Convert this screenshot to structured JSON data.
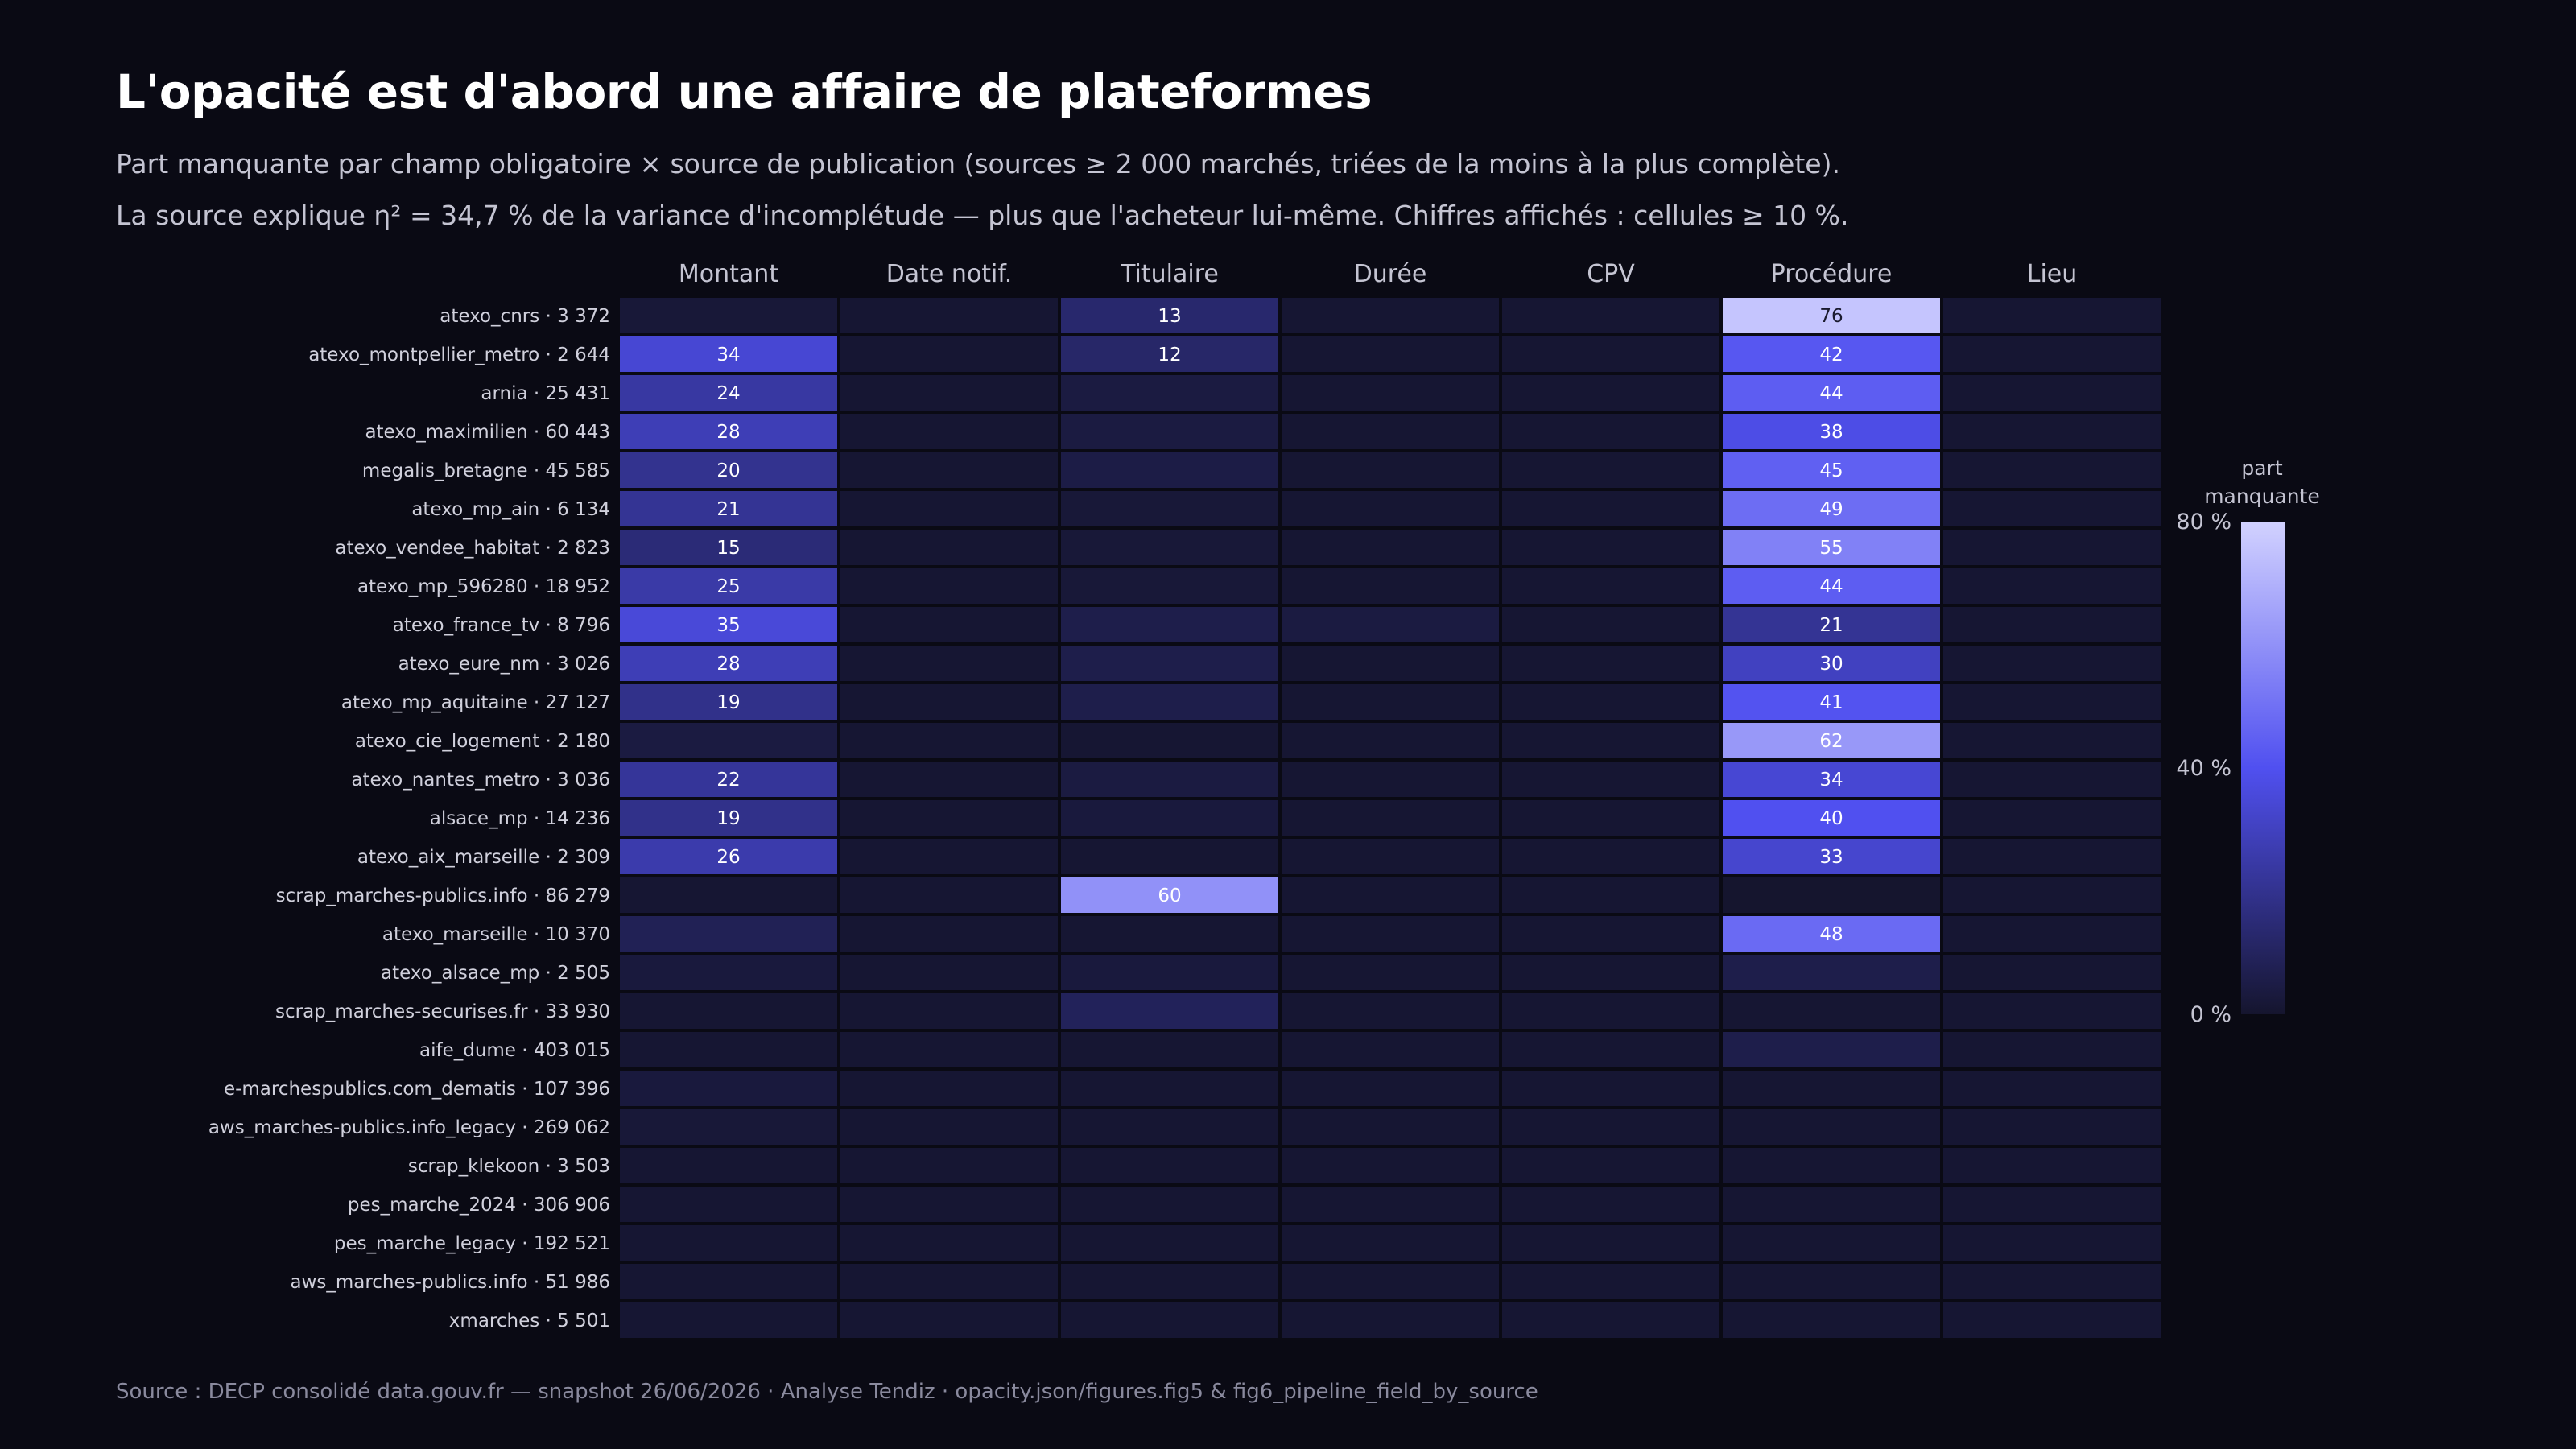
{
  "header": {
    "title": "L'opacité est d'abord une affaire de plateformes",
    "subtitle_1": "Part manquante par champ obligatoire × source de publication (sources ≥ 2 000 marchés, triées de la moins à la plus complète).",
    "subtitle_2": "La source explique η² = 34,7 % de la variance d'incomplétude — plus que l'acheteur lui-même. Chiffres affichés : cellules ≥ 10 %."
  },
  "footer": {
    "source": "Source : DECP consolidé data.gouv.fr — snapshot 26/06/2026 · Analyse Tendiz  ·  opacity.json/figures.fig5 & fig6_pipeline_field_by_source"
  },
  "chart_data": {
    "type": "heatmap",
    "columns": [
      "Montant",
      "Date notif.",
      "Titulaire",
      "Durée",
      "CPV",
      "Procédure",
      "Lieu"
    ],
    "rows": [
      {
        "source": "atexo_cnrs",
        "count": "3 372",
        "values": [
          2,
          1,
          13,
          1,
          1,
          76,
          1
        ]
      },
      {
        "source": "atexo_montpellier_metro",
        "count": "2 644",
        "values": [
          34,
          1,
          12,
          1,
          1,
          42,
          1
        ]
      },
      {
        "source": "arnia",
        "count": "25 431",
        "values": [
          24,
          1,
          4,
          1,
          1,
          44,
          1
        ]
      },
      {
        "source": "atexo_maximilien",
        "count": "60 443",
        "values": [
          28,
          1,
          4,
          1,
          1,
          38,
          1
        ]
      },
      {
        "source": "megalis_bretagne",
        "count": "45 585",
        "values": [
          20,
          1,
          5,
          1,
          1,
          45,
          1
        ]
      },
      {
        "source": "atexo_mp_ain",
        "count": "6 134",
        "values": [
          21,
          1,
          2,
          1,
          1,
          49,
          1
        ]
      },
      {
        "source": "atexo_vendee_habitat",
        "count": "2 823",
        "values": [
          15,
          1,
          2,
          1,
          1,
          55,
          1
        ]
      },
      {
        "source": "atexo_mp_596280",
        "count": "18 952",
        "values": [
          25,
          1,
          2,
          1,
          1,
          44,
          1
        ]
      },
      {
        "source": "atexo_france_tv",
        "count": "8 796",
        "values": [
          35,
          1,
          6,
          4,
          1,
          21,
          1
        ]
      },
      {
        "source": "atexo_eure_nm",
        "count": "3 026",
        "values": [
          28,
          1,
          6,
          1,
          1,
          30,
          1
        ]
      },
      {
        "source": "atexo_mp_aquitaine",
        "count": "27 127",
        "values": [
          19,
          1,
          6,
          1,
          1,
          41,
          1
        ]
      },
      {
        "source": "atexo_cie_logement",
        "count": "2 180",
        "values": [
          4,
          1,
          1,
          1,
          1,
          62,
          1
        ]
      },
      {
        "source": "atexo_nantes_metro",
        "count": "3 036",
        "values": [
          22,
          1,
          4,
          1,
          1,
          34,
          1
        ]
      },
      {
        "source": "alsace_mp",
        "count": "14 236",
        "values": [
          19,
          1,
          3,
          1,
          1,
          40,
          1
        ]
      },
      {
        "source": "atexo_aix_marseille",
        "count": "2 309",
        "values": [
          26,
          1,
          1,
          1,
          1,
          33,
          1
        ]
      },
      {
        "source": "scrap_marches-publics.info",
        "count": "86 279",
        "values": [
          1,
          1,
          60,
          1,
          1,
          0,
          1
        ]
      },
      {
        "source": "atexo_marseille",
        "count": "10 370",
        "values": [
          8,
          1,
          1,
          1,
          1,
          48,
          1
        ]
      },
      {
        "source": "atexo_alsace_mp",
        "count": "2 505",
        "values": [
          3,
          1,
          3,
          1,
          1,
          6,
          1
        ]
      },
      {
        "source": "scrap_marches-securises.fr",
        "count": "33 930",
        "values": [
          1,
          1,
          9,
          1,
          1,
          1,
          1
        ]
      },
      {
        "source": "aife_dume",
        "count": "403 015",
        "values": [
          1,
          1,
          1,
          1,
          1,
          6,
          1
        ]
      },
      {
        "source": "e-marchespublics.com_dematis",
        "count": "107 396",
        "values": [
          3,
          1,
          1,
          1,
          1,
          1,
          1
        ]
      },
      {
        "source": "aws_marches-publics.info_legacy",
        "count": "269 062",
        "values": [
          2,
          1,
          1,
          1,
          1,
          1,
          1
        ]
      },
      {
        "source": "scrap_klekoon",
        "count": "3 503",
        "values": [
          1,
          1,
          1,
          1,
          1,
          1,
          1
        ]
      },
      {
        "source": "pes_marche_2024",
        "count": "306 906",
        "values": [
          1,
          1,
          1,
          1,
          1,
          1,
          1
        ]
      },
      {
        "source": "pes_marche_legacy",
        "count": "192 521",
        "values": [
          1,
          1,
          1,
          1,
          1,
          1,
          1
        ]
      },
      {
        "source": "aws_marches-publics.info",
        "count": "51 986",
        "values": [
          1,
          1,
          1,
          1,
          1,
          1,
          1
        ]
      },
      {
        "source": "xmarches",
        "count": "5 501",
        "values": [
          1,
          1,
          1,
          1,
          1,
          1,
          1
        ]
      }
    ],
    "label_threshold": 10,
    "scale": {
      "min": 0,
      "max": 80
    },
    "legend": {
      "title_line1": "part",
      "title_line2": "manquante",
      "ticks": [
        {
          "value": 80,
          "label": "80 %"
        },
        {
          "value": 40,
          "label": "40 %"
        },
        {
          "value": 0,
          "label": "0 %"
        }
      ],
      "placement": "right"
    },
    "colors": {
      "low": "#15152e",
      "mid": "#5050f0",
      "high": "#d2d2ff"
    }
  }
}
